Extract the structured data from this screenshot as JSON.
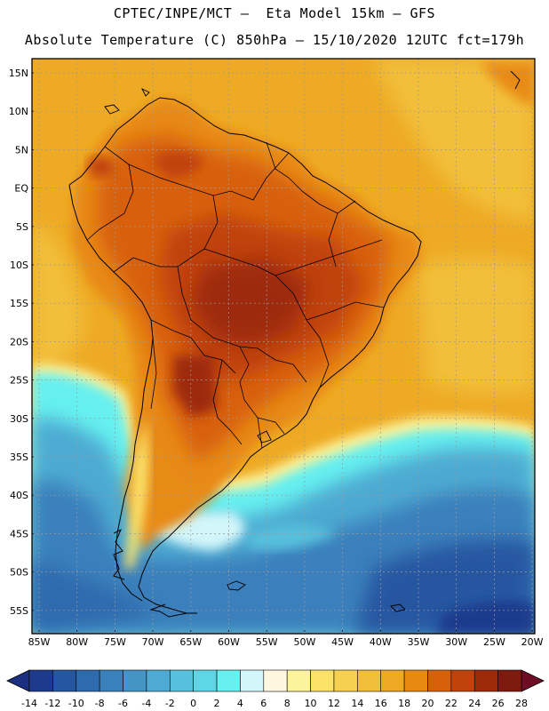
{
  "header": {
    "title_line1": "CPTEC/INPE/MCT –  Eta Model 15km – GFS",
    "title_line2": "Absolute Temperature (C) 850hPa – 15/10/2020 12UTC fct=179h"
  },
  "map": {
    "lat_labels": [
      "15N",
      "10N",
      "5N",
      "EQ",
      "5S",
      "10S",
      "15S",
      "20S",
      "25S",
      "30S",
      "35S",
      "40S",
      "45S",
      "50S",
      "55S"
    ],
    "lon_labels": [
      "85W",
      "80W",
      "75W",
      "70W",
      "65W",
      "60W",
      "55W",
      "50W",
      "45W",
      "40W",
      "35W",
      "30W",
      "25W",
      "20W"
    ]
  },
  "legend": {
    "labels": [
      "-14",
      "-12",
      "-10",
      "-8",
      "-6",
      "-4",
      "-2",
      "0",
      "2",
      "4",
      "6",
      "8",
      "10",
      "12",
      "14",
      "16",
      "18",
      "20",
      "22",
      "24",
      "26",
      "28"
    ],
    "colors": [
      "#1e3a8c",
      "#2556a0",
      "#2e6aae",
      "#3a80bc",
      "#4594c6",
      "#4eaad2",
      "#57c0dc",
      "#5ed6e4",
      "#66f0f0",
      "#d2f6fa",
      "#fff7e0",
      "#fcf39a",
      "#fbe36a",
      "#f6d050",
      "#f2bf3a",
      "#eeaa24",
      "#e88a12",
      "#d8600a",
      "#c0420c",
      "#9e2a0c",
      "#7e1a10"
    ],
    "low_color": "#1a2f80",
    "high_color": "#6e0e24"
  }
}
